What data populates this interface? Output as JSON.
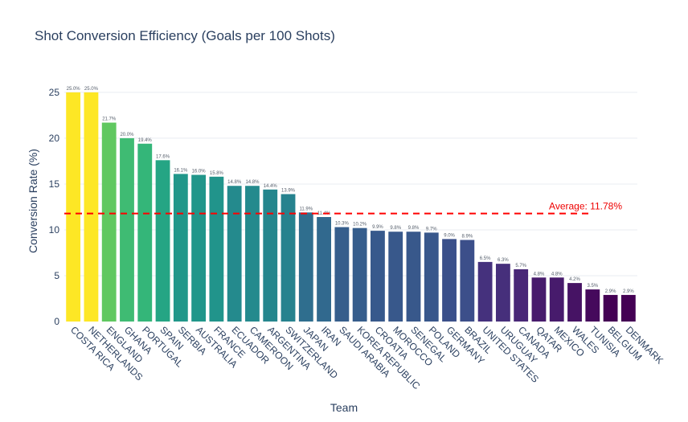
{
  "chart_data": {
    "type": "bar",
    "title": "Shot Conversion Efficiency (Goals per 100 Shots)",
    "xlabel": "Team",
    "ylabel": "Conversion Rate (%)",
    "ylim": [
      0,
      28.5
    ],
    "yticks": [
      0,
      5,
      10,
      15,
      20,
      25
    ],
    "grid": "horizontal",
    "legend": "none",
    "colorscale": "viridis (reversed: highest = yellow, lowest = purple)",
    "categories": [
      "COSTA RICA",
      "NETHERLANDS",
      "ENGLAND",
      "GHANA",
      "PORTUGAL",
      "SPAIN",
      "SERBIA",
      "AUSTRALIA",
      "FRANCE",
      "ECUADOR",
      "CAMEROON",
      "ARGENTINA",
      "SWITZERLAND",
      "JAPAN",
      "IRAN",
      "SAUDI ARABIA",
      "KOREA REPUBLIC",
      "CROATIA",
      "MOROCCO",
      "SENEGAL",
      "POLAND",
      "GERMANY",
      "BRAZIL",
      "UNITED STATES",
      "URUGUAY",
      "CANADA",
      "QATAR",
      "MEXICO",
      "WALES",
      "TUNISIA",
      "BELGIUM",
      "DENMARK"
    ],
    "values": [
      25.0,
      25.0,
      21.7,
      20.0,
      19.4,
      17.6,
      16.1,
      16.0,
      15.8,
      14.8,
      14.8,
      14.4,
      13.9,
      11.9,
      11.4,
      10.3,
      10.2,
      9.9,
      9.8,
      9.8,
      9.7,
      9.0,
      8.9,
      6.5,
      6.3,
      5.7,
      4.8,
      4.8,
      4.2,
      3.5,
      2.9,
      2.9
    ],
    "labels": [
      "25.0%",
      "25.0%",
      "21.7%",
      "20.0%",
      "19.4%",
      "17.6%",
      "16.1%",
      "16.0%",
      "15.8%",
      "14.8%",
      "14.8%",
      "14.4%",
      "13.9%",
      "11.9%",
      "11.4%",
      "10.3%",
      "10.2%",
      "9.9%",
      "9.8%",
      "9.8%",
      "9.7%",
      "9.0%",
      "8.9%",
      "6.5%",
      "6.3%",
      "5.7%",
      "4.8%",
      "4.8%",
      "4.2%",
      "3.5%",
      "2.9%",
      "2.9%"
    ],
    "average": {
      "value": 11.78,
      "label": "Average: 11.78%",
      "color": "#ff0000",
      "style": "dashed"
    }
  }
}
